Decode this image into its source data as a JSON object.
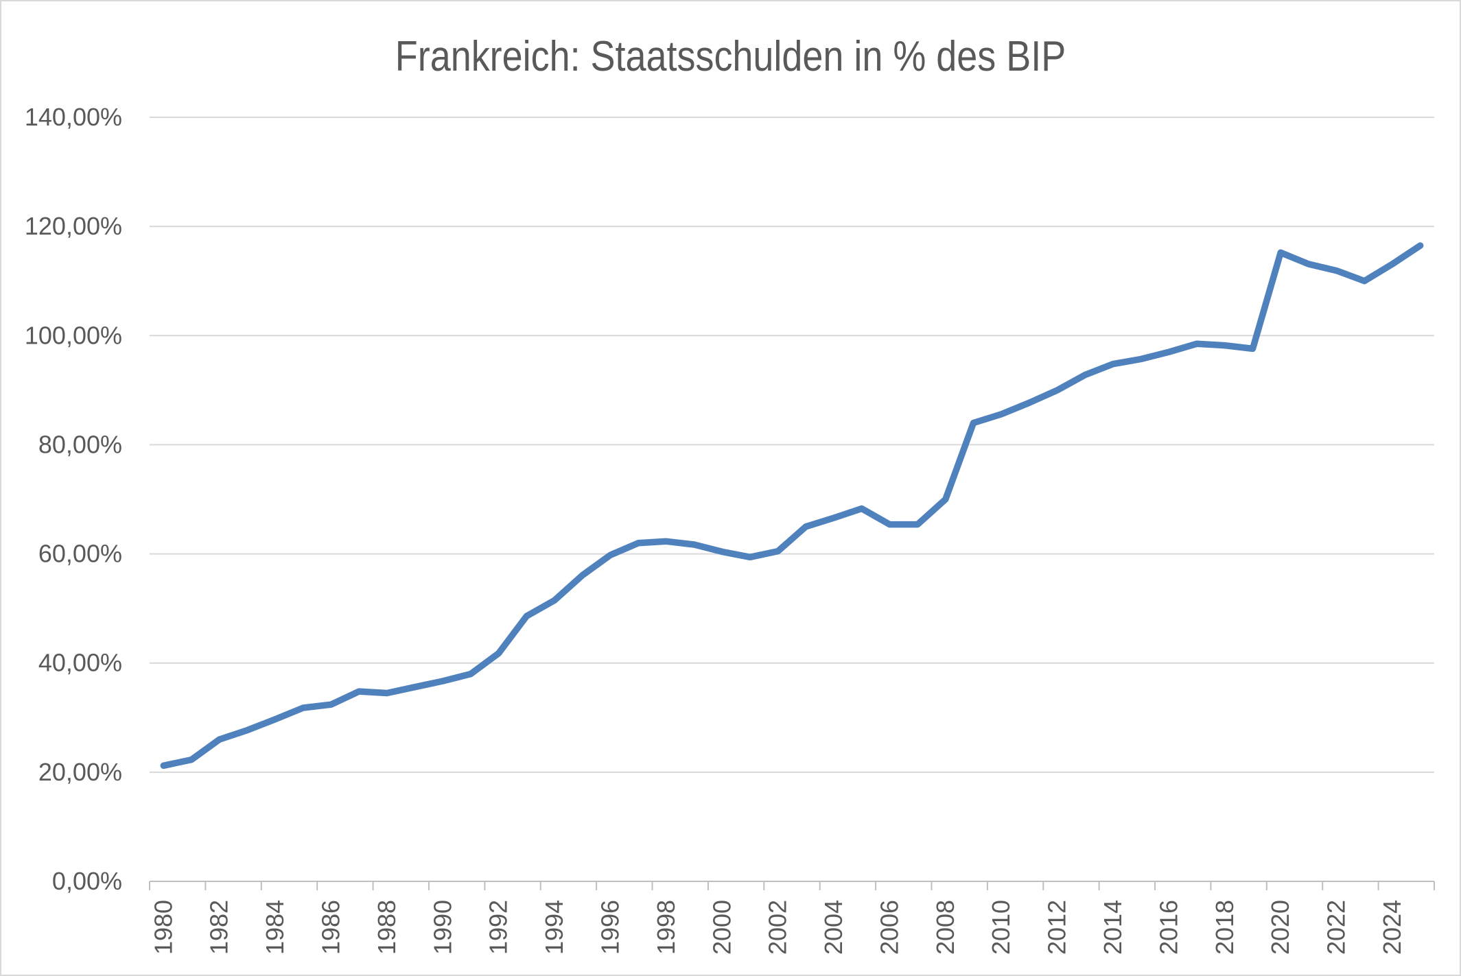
{
  "chart_data": {
    "type": "line",
    "title": "Frankreich: Staatsschulden in % des BIP",
    "xlabel": "",
    "ylabel": "",
    "x": [
      1980,
      1981,
      1982,
      1983,
      1984,
      1985,
      1986,
      1987,
      1988,
      1989,
      1990,
      1991,
      1992,
      1993,
      1994,
      1995,
      1996,
      1997,
      1998,
      1999,
      2000,
      2001,
      2002,
      2003,
      2004,
      2005,
      2006,
      2007,
      2008,
      2009,
      2010,
      2011,
      2012,
      2013,
      2014,
      2015,
      2016,
      2017,
      2018,
      2019,
      2020,
      2021,
      2022,
      2023,
      2024,
      2025
    ],
    "values": [
      21.2,
      22.3,
      26.0,
      27.7,
      29.7,
      31.8,
      32.4,
      34.8,
      34.5,
      35.6,
      36.7,
      38.0,
      41.8,
      48.6,
      51.5,
      56.1,
      59.8,
      62.0,
      62.3,
      61.7,
      60.4,
      59.4,
      60.5,
      65.0,
      66.6,
      68.3,
      65.4,
      65.4,
      70.0,
      84.0,
      85.6,
      87.7,
      90.0,
      92.8,
      94.8,
      95.7,
      97.0,
      98.5,
      98.2,
      97.6,
      115.2,
      113.1,
      111.9,
      110.0,
      113.1,
      116.5
    ],
    "ylim": [
      0,
      140
    ],
    "y_ticks": [
      {
        "value": 0,
        "label": "0,00%"
      },
      {
        "value": 20,
        "label": "20,00%"
      },
      {
        "value": 40,
        "label": "40,00%"
      },
      {
        "value": 60,
        "label": "60,00%"
      },
      {
        "value": 80,
        "label": "80,00%"
      },
      {
        "value": 100,
        "label": "100,00%"
      },
      {
        "value": 120,
        "label": "120,00%"
      },
      {
        "value": 140,
        "label": "140,00%"
      }
    ],
    "x_tick_labels": [
      "1980",
      "1982",
      "1984",
      "1986",
      "1988",
      "1990",
      "1992",
      "1994",
      "1996",
      "1998",
      "2000",
      "2002",
      "2004",
      "2006",
      "2008",
      "2010",
      "2012",
      "2014",
      "2016",
      "2018",
      "2020",
      "2022",
      "2024"
    ],
    "x_label_every_years": 2,
    "grid": true,
    "legend": false,
    "colors": {
      "line": "#4F81BD",
      "gridline": "#D9D9D9",
      "axis": "#BFBFBF",
      "text": "#595959",
      "background": "#FFFFFF"
    }
  }
}
